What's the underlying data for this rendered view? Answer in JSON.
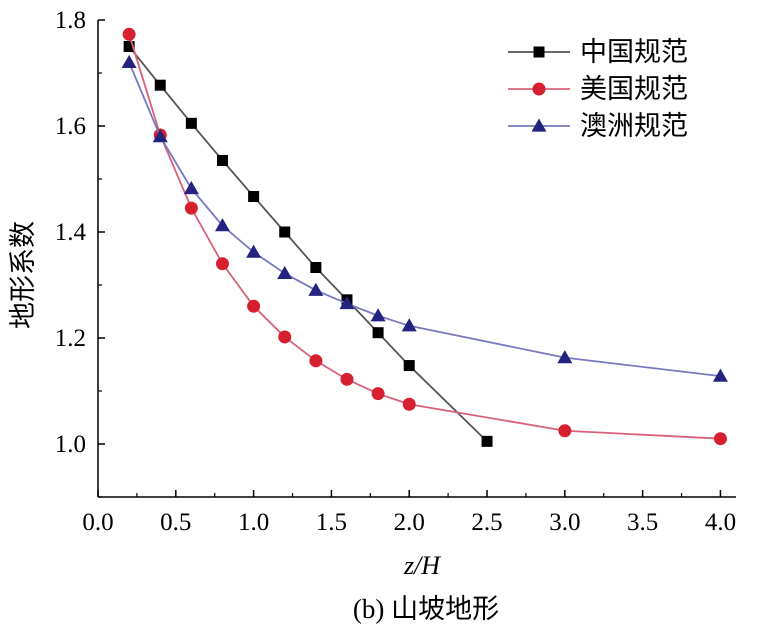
{
  "chart_data": {
    "type": "line",
    "xlabel": "z/H",
    "ylabel": "地形系数",
    "caption": "(b) 山坡地形",
    "xlim": [
      0.0,
      4.1
    ],
    "ylim": [
      0.9,
      1.8
    ],
    "xticks": [
      "0.0",
      "0.5",
      "1.0",
      "1.5",
      "2.0",
      "2.5",
      "3.0",
      "3.5",
      "4.0"
    ],
    "yticks": [
      "1.0",
      "1.2",
      "1.4",
      "1.6",
      "1.8"
    ],
    "grid": false,
    "legend_position": "top-right",
    "series": [
      {
        "name": "中国规范",
        "color": "#555555",
        "marker_color": "#000000",
        "marker": "square",
        "x": [
          0.2,
          0.4,
          0.6,
          0.8,
          1.0,
          1.2,
          1.4,
          1.6,
          1.8,
          2.0,
          2.5
        ],
        "y": [
          1.75,
          1.677,
          1.605,
          1.535,
          1.467,
          1.4,
          1.333,
          1.272,
          1.21,
          1.148,
          1.005
        ]
      },
      {
        "name": "美国规范",
        "color": "#d9607a",
        "marker_color": "#d62030",
        "marker": "circle",
        "x": [
          0.2,
          0.4,
          0.6,
          0.8,
          1.0,
          1.2,
          1.4,
          1.6,
          1.8,
          2.0,
          3.0,
          4.0
        ],
        "y": [
          1.773,
          1.583,
          1.445,
          1.34,
          1.26,
          1.202,
          1.157,
          1.122,
          1.095,
          1.075,
          1.025,
          1.01
        ]
      },
      {
        "name": "澳洲规范",
        "color": "#7a78c0",
        "marker_color": "#24237f",
        "marker": "triangle",
        "x": [
          0.2,
          0.4,
          0.6,
          0.8,
          1.0,
          1.2,
          1.4,
          1.6,
          1.8,
          2.0,
          3.0,
          4.0
        ],
        "y": [
          1.72,
          1.58,
          1.482,
          1.412,
          1.362,
          1.322,
          1.29,
          1.265,
          1.242,
          1.223,
          1.163,
          1.128
        ]
      }
    ]
  }
}
